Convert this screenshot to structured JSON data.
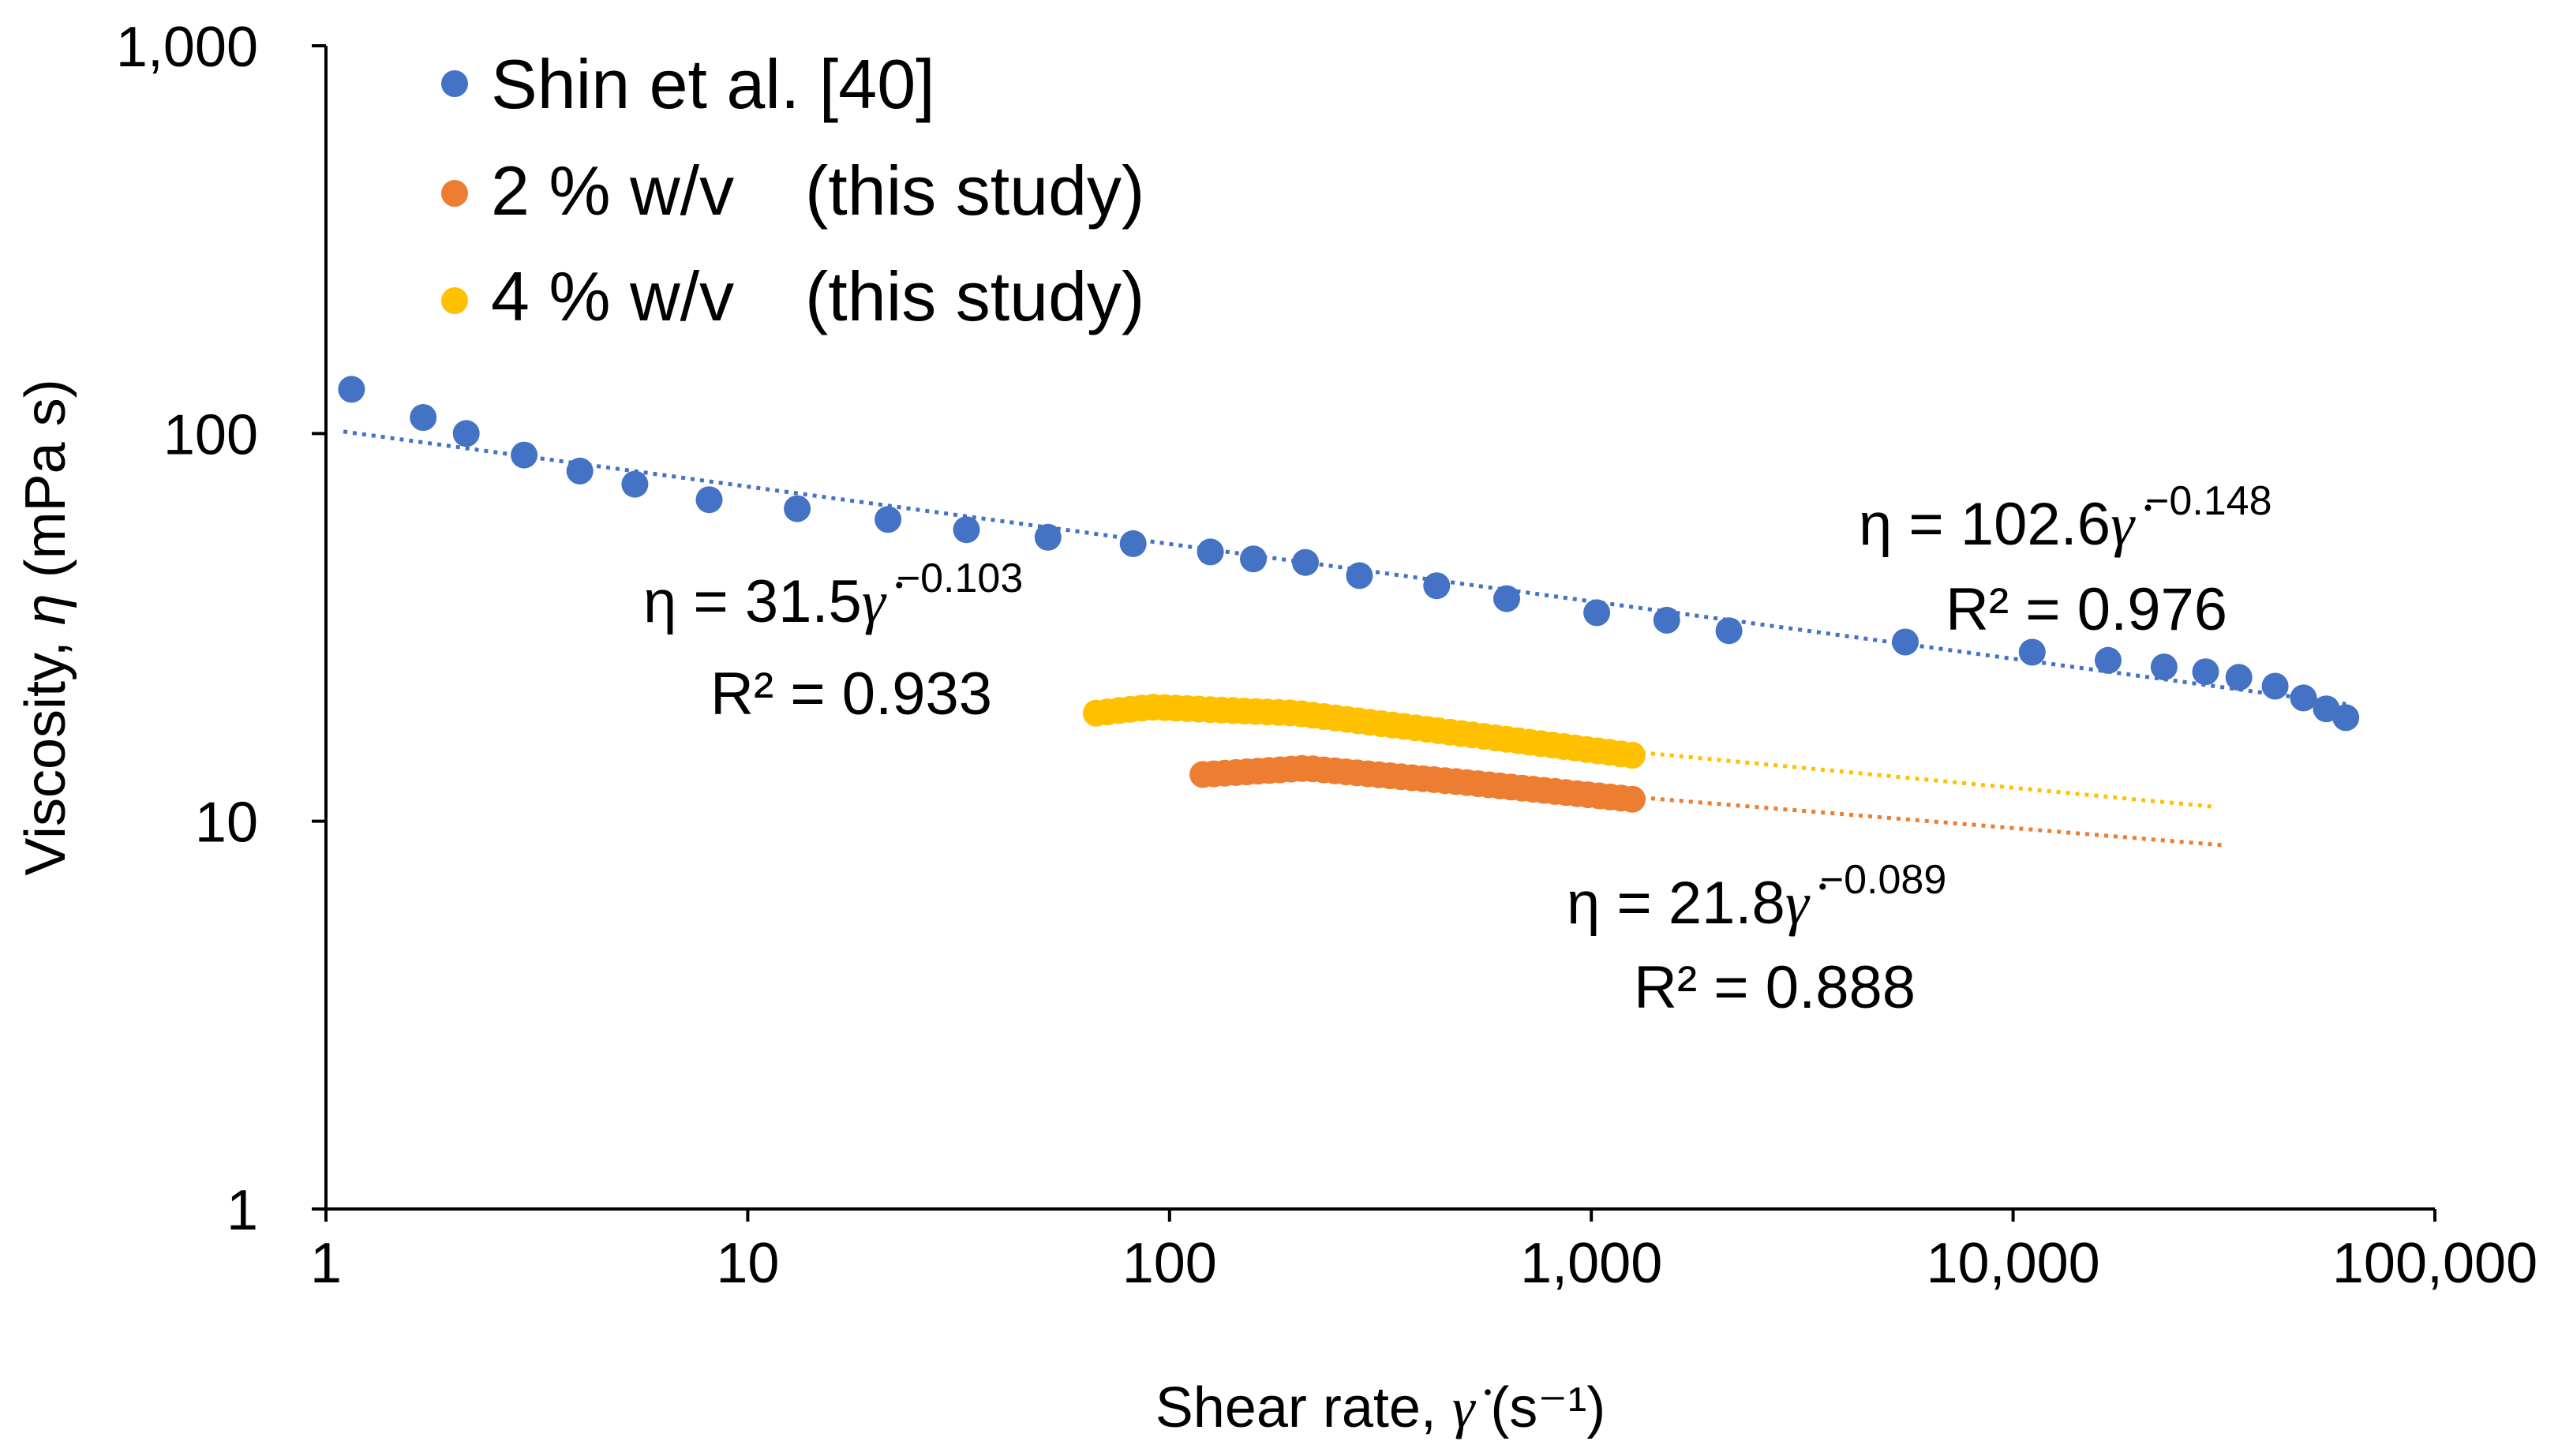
{
  "chart_data": {
    "type": "scatter",
    "title": "",
    "xlabel": "Shear rate, γ̇  (s⁻¹)",
    "xlabel_parts": {
      "main": "Shear rate, ",
      "symbol": "γ̇",
      "unit": "  (s⁻¹)"
    },
    "ylabel": "Viscosity, η (mPa s)",
    "ylabel_parts": {
      "main": "Viscosity, ",
      "symbol": "η",
      "unit": " (mPa s)"
    },
    "xscale": "log",
    "yscale": "log",
    "xlim": [
      1,
      100000
    ],
    "ylim": [
      1,
      1000
    ],
    "x_ticks": [
      1,
      10,
      100,
      1000,
      10000,
      100000
    ],
    "x_tick_labels": [
      "1",
      "10",
      "100",
      "1,000",
      "10,000",
      "100,000"
    ],
    "y_ticks": [
      1,
      10,
      100,
      1000
    ],
    "y_tick_labels": [
      "1",
      "10",
      "100",
      "1,000"
    ],
    "grid": false,
    "legend_position": "top-left",
    "series": [
      {
        "name": "Shin et al. [40]",
        "color": "#4472C4",
        "x": [
          1.15,
          1.7,
          2.15,
          2.95,
          4.0,
          5.4,
          8.1,
          13.1,
          21.5,
          33.0,
          51.5,
          82.0,
          125,
          158,
          210,
          282,
          430,
          630,
          1030,
          1510,
          2120,
          5550,
          11100,
          16800,
          22800,
          28600,
          34300,
          41800,
          48800,
          55300,
          61500
        ],
        "y": [
          130,
          110,
          100,
          88,
          80,
          74,
          67.5,
          64,
          60,
          56.5,
          54,
          52,
          49.5,
          47.5,
          46.5,
          43,
          40.5,
          37.5,
          34.5,
          33,
          31,
          29,
          27.3,
          26,
          25,
          24.3,
          23.5,
          22.3,
          20.8,
          19.5,
          18.5
        ],
        "fit": {
          "a": 102.6,
          "b": -0.148,
          "x_range": [
            1.1,
            61500
          ],
          "label_eq": "η = 102.6",
          "label_exp": "−0.148",
          "label_r2": "R² = 0.976"
        }
      },
      {
        "name": "2 % w/v",
        "name_suffix": "(this study)",
        "color": "#ED7D31",
        "x_range": [
          120,
          1250
        ],
        "n_points": 40,
        "y_control": [
          [
            120,
            13.2
          ],
          [
            210,
            13.7
          ],
          [
            500,
            12.6
          ],
          [
            1250,
            11.4
          ]
        ],
        "fit": {
          "a": 21.8,
          "b": -0.089,
          "x_range": [
            1250,
            32000
          ],
          "label_eq": "η = 21.8",
          "label_exp": "−0.089",
          "label_r2": "R² = 0.888"
        }
      },
      {
        "name": "4 % w/v",
        "name_suffix": "(this study)",
        "color": "#FFC000",
        "x_range": [
          67,
          1250
        ],
        "n_points": 48,
        "y_control": [
          [
            67,
            19.0
          ],
          [
            90,
            19.7
          ],
          [
            200,
            19.0
          ],
          [
            500,
            16.8
          ],
          [
            1250,
            14.8
          ]
        ],
        "fit": {
          "a": 31.5,
          "b": -0.103,
          "x_range": [
            1250,
            30000
          ],
          "label_eq": "η = 31.5",
          "label_exp": "−0.103",
          "label_r2": "R² = 0.933"
        }
      }
    ]
  }
}
